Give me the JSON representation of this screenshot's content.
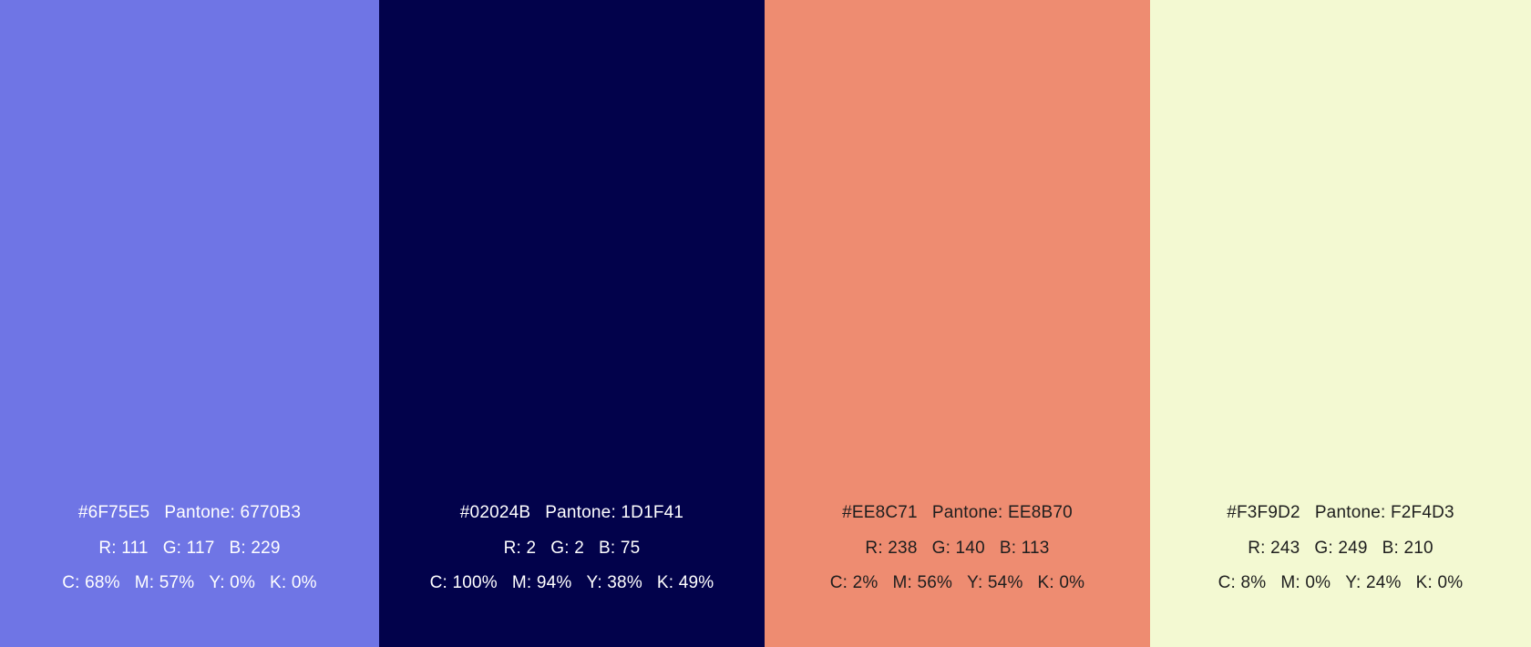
{
  "swatches": [
    {
      "color": "#6F75E5",
      "text_color": "#FFFFFF",
      "hex": "#6F75E5",
      "pantone": "Pantone: 6770B3",
      "r": "R: 111",
      "g": "G: 117",
      "b": "B: 229",
      "c": "C: 68%",
      "m": "M: 57%",
      "y": "Y: 0%",
      "k": "K: 0%"
    },
    {
      "color": "#02024B",
      "text_color": "#FFFFFF",
      "hex": "#02024B",
      "pantone": "Pantone: 1D1F41",
      "r": "R: 2",
      "g": "G: 2",
      "b": "B: 75",
      "c": "C: 100%",
      "m": "M: 94%",
      "y": "Y: 38%",
      "k": "K: 49%"
    },
    {
      "color": "#EE8C71",
      "text_color": "#1E1E1E",
      "hex": "#EE8C71",
      "pantone": "Pantone: EE8B70",
      "r": "R: 238",
      "g": "G: 140",
      "b": "B: 113",
      "c": "C: 2%",
      "m": "M: 56%",
      "y": "Y: 54%",
      "k": "K: 0%"
    },
    {
      "color": "#F3F9D2",
      "text_color": "#1E1E1E",
      "hex": "#F3F9D2",
      "pantone": "Pantone: F2F4D3",
      "r": "R: 243",
      "g": "G: 249",
      "b": "B: 210",
      "c": "C: 8%",
      "m": "M: 0%",
      "y": "Y: 24%",
      "k": "K: 0%"
    }
  ]
}
